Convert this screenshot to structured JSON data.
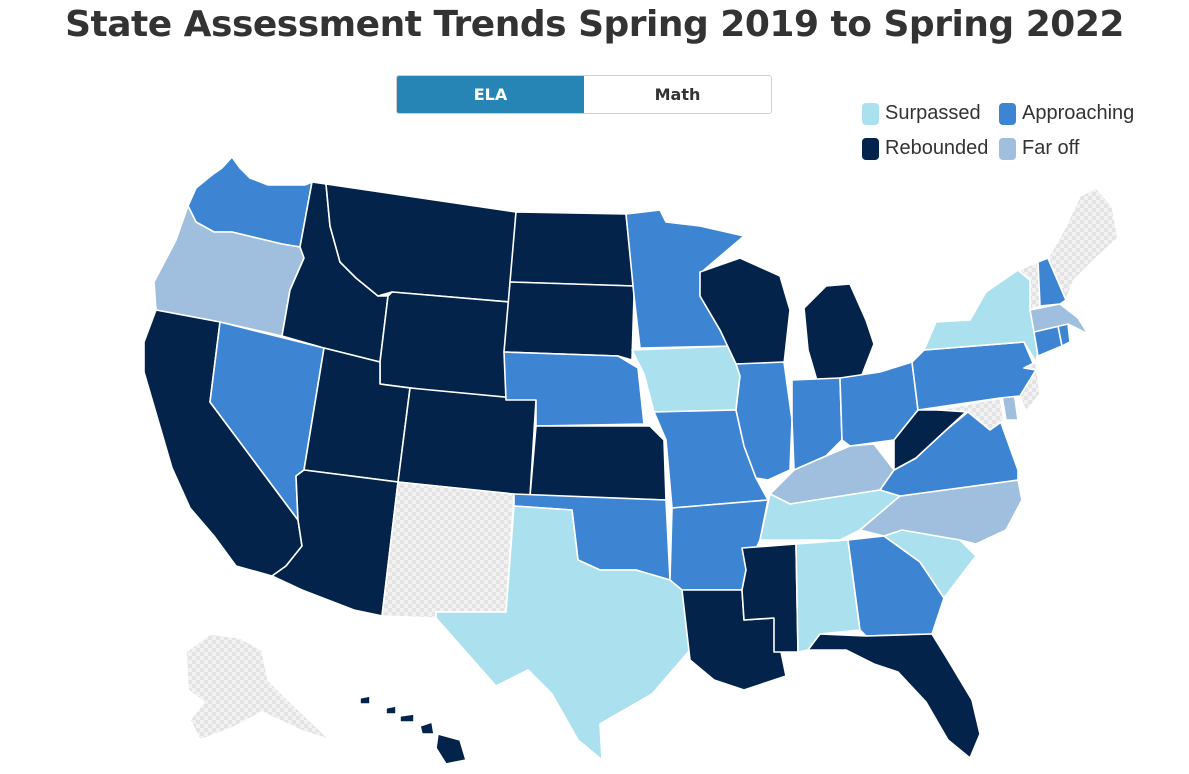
{
  "title": "State Assessment Trends Spring 2019 to Spring 2022",
  "toggle": {
    "ela_label": "ELA",
    "math_label": "Math",
    "selected": "ELA"
  },
  "legend": [
    {
      "label": "Surpassed",
      "color": "#abe1ee"
    },
    {
      "label": "Approaching",
      "color": "#3d84d2"
    },
    {
      "label": "Rebounded",
      "color": "#03234a"
    },
    {
      "label": "Far off",
      "color": "#a0bedd"
    }
  ],
  "no_data_color": "#e6e6e6",
  "states": {
    "WA": "Approaching",
    "OR": "Far off",
    "CA": "Rebounded",
    "NV": "Approaching",
    "ID": "Rebounded",
    "MT": "Rebounded",
    "WY": "Rebounded",
    "UT": "Rebounded",
    "AZ": "Rebounded",
    "CO": "Rebounded",
    "NM": "No data",
    "ND": "Rebounded",
    "SD": "Rebounded",
    "NE": "Approaching",
    "KS": "Rebounded",
    "OK": "Approaching",
    "TX": "Surpassed",
    "MN": "Approaching",
    "IA": "Surpassed",
    "MO": "Approaching",
    "AR": "Approaching",
    "LA": "Rebounded",
    "WI": "Rebounded",
    "IL": "Approaching",
    "MI": "Rebounded",
    "IN": "Approaching",
    "OH": "Approaching",
    "KY": "Far off",
    "TN": "Surpassed",
    "MS": "Rebounded",
    "AL": "Surpassed",
    "GA": "Approaching",
    "FL": "Rebounded",
    "SC": "Surpassed",
    "NC": "Far off",
    "VA": "Approaching",
    "WV": "Rebounded",
    "PA": "Approaching",
    "NY": "Surpassed",
    "VT": "No data",
    "NH": "Approaching",
    "ME": "No data",
    "MA": "Far off",
    "CT": "Approaching",
    "RI": "Approaching",
    "NJ": "No data",
    "DE": "Far off",
    "MD": "No data",
    "AK": "No data",
    "HI": "Rebounded"
  }
}
